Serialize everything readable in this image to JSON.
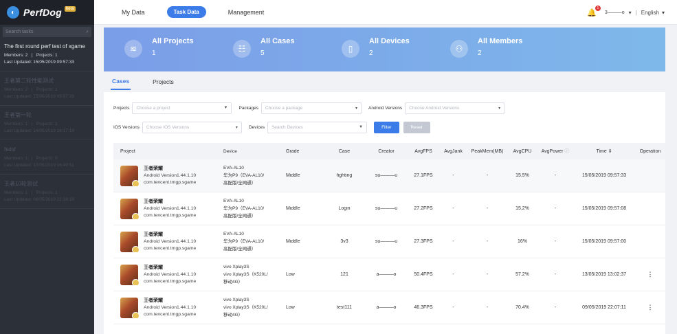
{
  "brand": {
    "name": "PerfDog",
    "badge": "beta"
  },
  "sidebar": {
    "search_placeholder": "Search tasks",
    "projects": [
      {
        "title": "The first round perf test of xgame",
        "members": "Members: 2",
        "projects": "Projects: 1",
        "updated": "Last Updated: 15/05/2019 09:57:33",
        "dim": false
      },
      {
        "title": "王者第二轮性能测试",
        "members": "Members: 2",
        "projects": "Projects: 1",
        "updated": "Last Updated: 15/05/2019 09:57:33",
        "dim": true
      },
      {
        "title": "王者第一轮",
        "members": "Members: 1",
        "projects": "Projects: 1",
        "updated": "Last Updated: 14/05/2019 16:17:19",
        "dim": true
      },
      {
        "title": "fsdsf",
        "members": "Members: 1",
        "projects": "Projects: 0",
        "updated": "Last Updated: 10/05/2019 16:49:51",
        "dim": true
      },
      {
        "title": "王者10轮测试",
        "members": "Members: 1",
        "projects": "Projects: 1",
        "updated": "Last Updated: 09/05/2019 22:16:19",
        "dim": true
      }
    ]
  },
  "topbar": {
    "nav": [
      "My Data",
      "Task Data",
      "Management"
    ],
    "active_nav": "Task Data",
    "notif_count": "1",
    "user": "3———o",
    "language": "English"
  },
  "banner": [
    {
      "label": "All Projects",
      "value": "1",
      "icon": "layers-icon"
    },
    {
      "label": "All Cases",
      "value": "5",
      "icon": "cases-icon"
    },
    {
      "label": "All Devices",
      "value": "2",
      "icon": "device-icon"
    },
    {
      "label": "All Members",
      "value": "2",
      "icon": "members-icon"
    }
  ],
  "tabs": [
    "Cases",
    "Projects"
  ],
  "filters": {
    "projects_label": "Projects",
    "projects_placeholder": "Choose a project",
    "packages_label": "Packages",
    "packages_placeholder": "Choose a package",
    "android_label": "Android Versions",
    "android_placeholder": "Choose Android Versions",
    "ios_label": "IOS Versions",
    "ios_placeholder": "Choose IOS Versions",
    "devices_label": "Devices",
    "devices_placeholder": "Search Devices",
    "filter_btn": "Filter",
    "reset_btn": "Reset"
  },
  "table": {
    "headers": {
      "project": "Project",
      "device": "Device",
      "grade": "Grade",
      "case": "Case",
      "creator": "Creator",
      "avgfps": "AvgFPS",
      "avgjank": "AvgJank",
      "peakmem": "PeakMem(MB)",
      "avgcpu": "AvgCPU",
      "avgpower": "AvgPower",
      "time": "Time ⇕",
      "operation": "Operation"
    },
    "rows": [
      {
        "name": "王者荣耀",
        "version": "Android Version1.44.1.10",
        "package": "com.tencent.tmgp.sgame",
        "dev1": "EVA-AL10",
        "dev2": "华为P9（EVA-AL10/",
        "dev3": "高配版/全网通）",
        "grade": "Middle",
        "case": "fighting",
        "creator": "su———u",
        "fps": "27.1FPS",
        "jank": "-",
        "mem": "-",
        "cpu": "15.5%",
        "power": "-",
        "time": "15/05/2019 09:57:33",
        "op": ""
      },
      {
        "name": "王者荣耀",
        "version": "Android Version1.44.1.10",
        "package": "com.tencent.tmgp.sgame",
        "dev1": "EVA-AL10",
        "dev2": "华为P9（EVA-AL10/",
        "dev3": "高配版/全网通）",
        "grade": "Middle",
        "case": "Login",
        "creator": "su———u",
        "fps": "27.2FPS",
        "jank": "-",
        "mem": "-",
        "cpu": "15.2%",
        "power": "-",
        "time": "15/05/2019 09:57:08",
        "op": ""
      },
      {
        "name": "王者荣耀",
        "version": "Android Version1.44.1.10",
        "package": "com.tencent.tmgp.sgame",
        "dev1": "EVA-AL10",
        "dev2": "华为P9（EVA-AL10/",
        "dev3": "高配版/全网通）",
        "grade": "Middle",
        "case": "3v3",
        "creator": "su———u",
        "fps": "27.3FPS",
        "jank": "-",
        "mem": "-",
        "cpu": "16%",
        "power": "-",
        "time": "15/05/2019 09:57:00",
        "op": ""
      },
      {
        "name": "王者荣耀",
        "version": "Android Version1.44.1.10",
        "package": "com.tencent.tmgp.sgame",
        "dev1": "vivo Xplay3S",
        "dev2": "vivo Xplay3S（K520L/",
        "dev3": "移动4G）",
        "grade": "Low",
        "case": "121",
        "creator": "a———o",
        "fps": "50.4FPS",
        "jank": "-",
        "mem": "-",
        "cpu": "57.2%",
        "power": "-",
        "time": "13/05/2019 13:02:37",
        "op": "⋮"
      },
      {
        "name": "王者荣耀",
        "version": "Android Version1.44.1.10",
        "package": "com.tencent.tmgp.sgame",
        "dev1": "vivo Xplay3S",
        "dev2": "vivo Xplay3S（K520L/",
        "dev3": "移动4G）",
        "grade": "Low",
        "case": "test111",
        "creator": "a———o",
        "fps": "46.3FPS",
        "jank": "-",
        "mem": "-",
        "cpu": "70.4%",
        "power": "-",
        "time": "09/05/2019 22:07:11",
        "op": "⋮"
      }
    ]
  }
}
